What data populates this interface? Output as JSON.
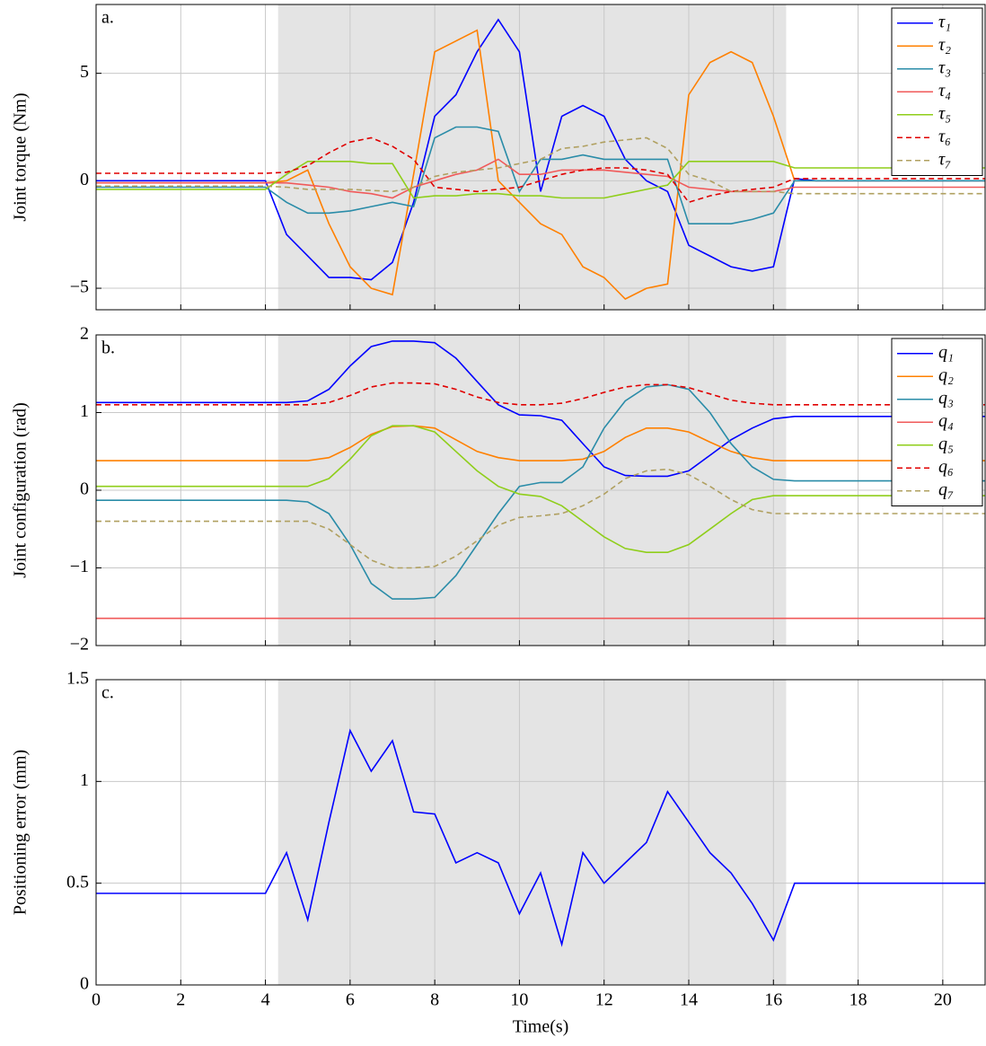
{
  "chart_data": [
    {
      "type": "line",
      "label": "a.",
      "ylabel": "Joint torque (Nm)",
      "x": [
        0,
        0.5,
        1,
        1.5,
        2,
        2.5,
        3,
        3.5,
        4,
        4.5,
        5,
        5.5,
        6,
        6.5,
        7,
        7.5,
        8,
        8.5,
        9,
        9.5,
        10,
        10.5,
        11,
        11.5,
        12,
        12.5,
        13,
        13.5,
        14,
        14.5,
        15,
        15.5,
        16,
        16.5,
        17,
        17.5,
        18,
        18.5,
        19,
        19.5,
        20,
        20.5,
        21
      ],
      "xlim": [
        0,
        21
      ],
      "ylim": [
        -6,
        8.2
      ],
      "xticks": [
        0,
        2,
        4,
        6,
        8,
        10,
        12,
        14,
        16,
        18,
        20
      ],
      "show_xtick_labels": false,
      "yticks": [
        {
          "value": -5,
          "label": "−5"
        },
        0,
        5
      ],
      "grid": true,
      "legend": "upper right",
      "shaded_span": [
        4.3,
        16.3
      ],
      "series": [
        {
          "name": "τ₁",
          "color": "#0000ff",
          "dash": false,
          "values": [
            0,
            0,
            0,
            0,
            0,
            0,
            0,
            0,
            0,
            -2.5,
            -3.5,
            -4.5,
            -4.5,
            -4.6,
            -3.8,
            -1,
            3,
            4,
            6,
            7.5,
            6,
            -0.5,
            3,
            3.5,
            3,
            1,
            0,
            -0.5,
            -3,
            -3.5,
            -4,
            -4.2,
            -4,
            0.1,
            0,
            0,
            0,
            0,
            0,
            0,
            0,
            0,
            0
          ]
        },
        {
          "name": "τ₂",
          "color": "#ff8000",
          "dash": false,
          "values": [
            -0.1,
            -0.1,
            -0.1,
            -0.1,
            -0.1,
            -0.1,
            -0.1,
            -0.1,
            -0.1,
            0,
            0.5,
            -2,
            -4,
            -5,
            -5.3,
            0.3,
            6,
            6.5,
            7,
            0,
            -1,
            -2,
            -2.5,
            -4,
            -4.5,
            -5.5,
            -5,
            -4.8,
            4,
            5.5,
            6,
            5.5,
            3,
            0,
            0,
            0,
            0,
            0,
            0,
            0,
            0,
            0,
            0
          ]
        },
        {
          "name": "τ₃",
          "color": "#2a8ca8",
          "dash": false,
          "values": [
            -0.3,
            -0.3,
            -0.3,
            -0.3,
            -0.3,
            -0.3,
            -0.3,
            -0.3,
            -0.3,
            -1,
            -1.5,
            -1.5,
            -1.4,
            -1.2,
            -1,
            -1.2,
            2,
            2.5,
            2.5,
            2.3,
            -0.5,
            1,
            1,
            1.2,
            1,
            1,
            1,
            1,
            -2,
            -2,
            -2,
            -1.8,
            -1.5,
            0,
            0,
            0,
            0,
            0,
            0,
            0,
            0,
            0,
            0
          ]
        },
        {
          "name": "τ₄",
          "color": "#f05a5a",
          "dash": false,
          "values": [
            -0.1,
            -0.1,
            -0.1,
            -0.1,
            -0.1,
            -0.1,
            -0.1,
            -0.1,
            -0.1,
            -0.1,
            -0.2,
            -0.3,
            -0.5,
            -0.6,
            -0.8,
            -0.3,
            0,
            0.3,
            0.5,
            1,
            0.3,
            0.3,
            0.5,
            0.5,
            0.5,
            0.4,
            0.3,
            0.2,
            -0.3,
            -0.4,
            -0.5,
            -0.5,
            -0.5,
            -0.3,
            -0.3,
            -0.3,
            -0.3,
            -0.3,
            -0.3,
            -0.3,
            -0.3,
            -0.3,
            -0.3
          ]
        },
        {
          "name": "τ₅",
          "color": "#8fce1a",
          "dash": false,
          "values": [
            -0.4,
            -0.4,
            -0.4,
            -0.4,
            -0.4,
            -0.4,
            -0.4,
            -0.4,
            -0.4,
            0.3,
            0.9,
            0.9,
            0.9,
            0.8,
            0.8,
            -0.8,
            -0.7,
            -0.7,
            -0.6,
            -0.6,
            -0.7,
            -0.7,
            -0.8,
            -0.8,
            -0.8,
            -0.6,
            -0.4,
            -0.2,
            0.9,
            0.9,
            0.9,
            0.9,
            0.9,
            0.6,
            0.6,
            0.6,
            0.6,
            0.6,
            0.6,
            0.6,
            0.6,
            0.6,
            0.6
          ]
        },
        {
          "name": "τ₆",
          "color": "#e00000",
          "dash": true,
          "values": [
            0.35,
            0.35,
            0.35,
            0.35,
            0.35,
            0.35,
            0.35,
            0.35,
            0.35,
            0.4,
            0.7,
            1.3,
            1.8,
            2,
            1.6,
            1,
            -0.3,
            -0.4,
            -0.5,
            -0.4,
            -0.3,
            0,
            0.3,
            0.5,
            0.6,
            0.6,
            0.5,
            0.3,
            -1,
            -0.7,
            -0.5,
            -0.4,
            -0.3,
            0.1,
            0.1,
            0.1,
            0.1,
            0.1,
            0.1,
            0.1,
            0.1,
            0.1,
            0.1
          ]
        },
        {
          "name": "τ₇",
          "color": "#b0a060",
          "dash": true,
          "values": [
            -0.25,
            -0.25,
            -0.25,
            -0.25,
            -0.25,
            -0.25,
            -0.25,
            -0.25,
            -0.25,
            -0.3,
            -0.4,
            -0.4,
            -0.4,
            -0.45,
            -0.5,
            -0.3,
            0.2,
            0.4,
            0.5,
            0.6,
            0.8,
            1,
            1.5,
            1.6,
            1.8,
            1.9,
            2,
            1.5,
            0.3,
            0,
            -0.5,
            -0.5,
            -0.5,
            -0.6,
            -0.6,
            -0.6,
            -0.6,
            -0.6,
            -0.6,
            -0.6,
            -0.6,
            -0.6,
            -0.6
          ]
        }
      ]
    },
    {
      "type": "line",
      "label": "b.",
      "ylabel": "Joint configuration (rad)",
      "x": [
        0,
        0.5,
        1,
        1.5,
        2,
        2.5,
        3,
        3.5,
        4,
        4.5,
        5,
        5.5,
        6,
        6.5,
        7,
        7.5,
        8,
        8.5,
        9,
        9.5,
        10,
        10.5,
        11,
        11.5,
        12,
        12.5,
        13,
        13.5,
        14,
        14.5,
        15,
        15.5,
        16,
        16.5,
        17,
        17.5,
        18,
        18.5,
        19,
        19.5,
        20,
        20.5,
        21
      ],
      "xlim": [
        0,
        21
      ],
      "ylim": [
        -2,
        2
      ],
      "xticks": [
        0,
        2,
        4,
        6,
        8,
        10,
        12,
        14,
        16,
        18,
        20
      ],
      "show_xtick_labels": false,
      "yticks": [
        {
          "value": -2,
          "label": "−2"
        },
        {
          "value": -1,
          "label": "−1"
        },
        0,
        1,
        2
      ],
      "grid": true,
      "legend": "upper right",
      "shaded_span": [
        4.3,
        16.3
      ],
      "series": [
        {
          "name": "q₁",
          "color": "#0000ff",
          "dash": false,
          "values": [
            1.13,
            1.13,
            1.13,
            1.13,
            1.13,
            1.13,
            1.13,
            1.13,
            1.13,
            1.13,
            1.15,
            1.3,
            1.6,
            1.85,
            1.92,
            1.92,
            1.9,
            1.7,
            1.4,
            1.1,
            0.97,
            0.96,
            0.9,
            0.6,
            0.3,
            0.19,
            0.18,
            0.18,
            0.25,
            0.45,
            0.65,
            0.8,
            0.92,
            0.95,
            0.95,
            0.95,
            0.95,
            0.95,
            0.95,
            0.95,
            0.95,
            0.95,
            0.95
          ]
        },
        {
          "name": "q₂",
          "color": "#ff8000",
          "dash": false,
          "values": [
            0.38,
            0.38,
            0.38,
            0.38,
            0.38,
            0.38,
            0.38,
            0.38,
            0.38,
            0.38,
            0.38,
            0.42,
            0.55,
            0.72,
            0.82,
            0.83,
            0.8,
            0.65,
            0.5,
            0.42,
            0.38,
            0.38,
            0.38,
            0.4,
            0.5,
            0.68,
            0.8,
            0.8,
            0.75,
            0.62,
            0.5,
            0.42,
            0.38,
            0.38,
            0.38,
            0.38,
            0.38,
            0.38,
            0.38,
            0.38,
            0.38,
            0.38,
            0.38
          ]
        },
        {
          "name": "q₃",
          "color": "#2a8ca8",
          "dash": false,
          "values": [
            -0.13,
            -0.13,
            -0.13,
            -0.13,
            -0.13,
            -0.13,
            -0.13,
            -0.13,
            -0.13,
            -0.13,
            -0.15,
            -0.3,
            -0.7,
            -1.2,
            -1.4,
            -1.4,
            -1.38,
            -1.1,
            -0.7,
            -0.3,
            0.05,
            0.1,
            0.1,
            0.3,
            0.8,
            1.15,
            1.33,
            1.36,
            1.3,
            1.0,
            0.6,
            0.3,
            0.14,
            0.12,
            0.12,
            0.12,
            0.12,
            0.12,
            0.12,
            0.12,
            0.12,
            0.12,
            0.12
          ]
        },
        {
          "name": "q₄",
          "color": "#f05a5a",
          "dash": false,
          "values": [
            -1.65,
            -1.65,
            -1.65,
            -1.65,
            -1.65,
            -1.65,
            -1.65,
            -1.65,
            -1.65,
            -1.65,
            -1.65,
            -1.65,
            -1.65,
            -1.65,
            -1.65,
            -1.65,
            -1.65,
            -1.65,
            -1.65,
            -1.65,
            -1.65,
            -1.65,
            -1.65,
            -1.65,
            -1.65,
            -1.65,
            -1.65,
            -1.65,
            -1.65,
            -1.65,
            -1.65,
            -1.65,
            -1.65,
            -1.65,
            -1.65,
            -1.65,
            -1.65,
            -1.65,
            -1.65,
            -1.65,
            -1.65,
            -1.65,
            -1.65
          ]
        },
        {
          "name": "q₅",
          "color": "#8fce1a",
          "dash": false,
          "values": [
            0.05,
            0.05,
            0.05,
            0.05,
            0.05,
            0.05,
            0.05,
            0.05,
            0.05,
            0.05,
            0.05,
            0.15,
            0.4,
            0.7,
            0.83,
            0.83,
            0.75,
            0.5,
            0.25,
            0.05,
            -0.05,
            -0.08,
            -0.2,
            -0.4,
            -0.6,
            -0.75,
            -0.8,
            -0.8,
            -0.7,
            -0.5,
            -0.3,
            -0.12,
            -0.07,
            -0.07,
            -0.07,
            -0.07,
            -0.07,
            -0.07,
            -0.07,
            -0.07,
            -0.07,
            -0.07,
            -0.07
          ]
        },
        {
          "name": "q₆",
          "color": "#e00000",
          "dash": true,
          "values": [
            1.1,
            1.1,
            1.1,
            1.1,
            1.1,
            1.1,
            1.1,
            1.1,
            1.1,
            1.1,
            1.1,
            1.13,
            1.22,
            1.33,
            1.38,
            1.38,
            1.37,
            1.3,
            1.2,
            1.13,
            1.1,
            1.1,
            1.12,
            1.18,
            1.26,
            1.33,
            1.36,
            1.36,
            1.32,
            1.24,
            1.16,
            1.12,
            1.1,
            1.1,
            1.1,
            1.1,
            1.1,
            1.1,
            1.1,
            1.1,
            1.1,
            1.1,
            1.1
          ]
        },
        {
          "name": "q₇",
          "color": "#b0a060",
          "dash": true,
          "values": [
            -0.4,
            -0.4,
            -0.4,
            -0.4,
            -0.4,
            -0.4,
            -0.4,
            -0.4,
            -0.4,
            -0.4,
            -0.4,
            -0.5,
            -0.7,
            -0.9,
            -1.0,
            -1.0,
            -0.98,
            -0.85,
            -0.65,
            -0.45,
            -0.35,
            -0.33,
            -0.3,
            -0.2,
            -0.05,
            0.15,
            0.25,
            0.27,
            0.2,
            0.05,
            -0.12,
            -0.25,
            -0.3,
            -0.3,
            -0.3,
            -0.3,
            -0.3,
            -0.3,
            -0.3,
            -0.3,
            -0.3,
            -0.3,
            -0.3
          ]
        }
      ]
    },
    {
      "type": "line",
      "label": "c.",
      "ylabel": "Positioning error (mm)",
      "xlabel": "Time(s)",
      "x": [
        0,
        0.5,
        1,
        1.5,
        2,
        2.5,
        3,
        3.5,
        4,
        4.5,
        5,
        5.5,
        6,
        6.5,
        7,
        7.5,
        8,
        8.5,
        9,
        9.5,
        10,
        10.5,
        11,
        11.5,
        12,
        12.5,
        13,
        13.5,
        14,
        14.5,
        15,
        15.5,
        16,
        16.5,
        17,
        17.5,
        18,
        18.5,
        19,
        19.5,
        20,
        20.5,
        21
      ],
      "xlim": [
        0,
        21
      ],
      "ylim": [
        0,
        1.5
      ],
      "xticks": [
        0,
        2,
        4,
        6,
        8,
        10,
        12,
        14,
        16,
        18,
        20
      ],
      "show_xtick_labels": true,
      "yticks": [
        0,
        0.5,
        1,
        1.5
      ],
      "grid": true,
      "shaded_span": [
        4.3,
        16.3
      ],
      "series": [
        {
          "color": "#0000ff",
          "dash": false,
          "values": [
            0.45,
            0.45,
            0.45,
            0.45,
            0.45,
            0.45,
            0.45,
            0.45,
            0.45,
            0.65,
            0.32,
            0.8,
            1.25,
            1.05,
            1.2,
            0.85,
            0.84,
            0.6,
            0.65,
            0.6,
            0.35,
            0.55,
            0.2,
            0.65,
            0.5,
            0.6,
            0.7,
            0.95,
            0.8,
            0.65,
            0.55,
            0.4,
            0.22,
            0.5,
            0.5,
            0.5,
            0.5,
            0.5,
            0.5,
            0.5,
            0.5,
            0.5,
            0.5
          ]
        }
      ]
    }
  ]
}
